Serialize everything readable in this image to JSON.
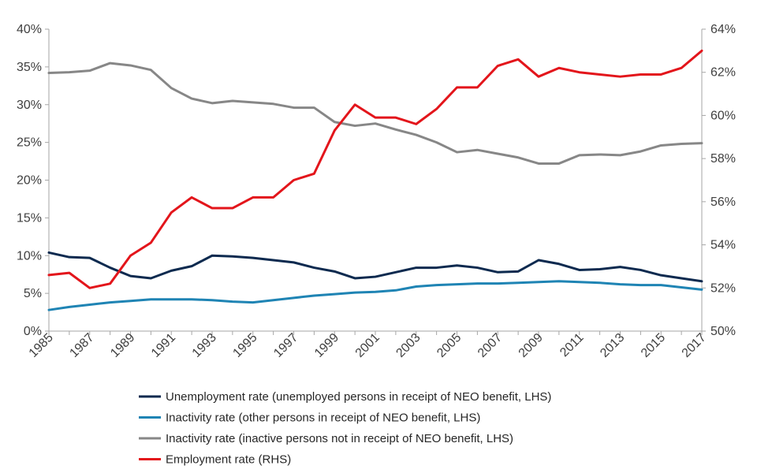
{
  "chart_data": {
    "type": "line",
    "x": [
      1985,
      1986,
      1987,
      1988,
      1989,
      1990,
      1991,
      1992,
      1993,
      1994,
      1995,
      1996,
      1997,
      1998,
      1999,
      2000,
      2001,
      2002,
      2003,
      2004,
      2005,
      2006,
      2007,
      2008,
      2009,
      2010,
      2011,
      2012,
      2013,
      2014,
      2015,
      2016,
      2017
    ],
    "x_tick_labels": [
      "1985",
      "1987",
      "1989",
      "1991",
      "1993",
      "1995",
      "1997",
      "1999",
      "2001",
      "2003",
      "2005",
      "2007",
      "2009",
      "2011",
      "2013",
      "2015",
      "2017"
    ],
    "y_left": {
      "ylim": [
        0,
        40
      ],
      "ticks": [
        0,
        5,
        10,
        15,
        20,
        25,
        30,
        35,
        40
      ],
      "tick_labels": [
        "0%",
        "5%",
        "10%",
        "15%",
        "20%",
        "25%",
        "30%",
        "35%",
        "40%"
      ]
    },
    "y_right": {
      "ylim": [
        50,
        64
      ],
      "ticks": [
        50,
        52,
        54,
        56,
        58,
        60,
        62,
        64
      ],
      "tick_labels": [
        "50%",
        "52%",
        "54%",
        "56%",
        "58%",
        "60%",
        "62%",
        "64%"
      ]
    },
    "grid": false,
    "legend_position": "bottom",
    "series": [
      {
        "name": "Unemployment rate (unemployed persons in receipt of NEO benefit, LHS)",
        "axis": "left",
        "color": "#0d2a4f",
        "values": [
          10.4,
          9.8,
          9.7,
          8.4,
          7.3,
          7.0,
          8.0,
          8.6,
          10.0,
          9.9,
          9.7,
          9.4,
          9.1,
          8.4,
          7.9,
          7.0,
          7.2,
          7.8,
          8.4,
          8.4,
          8.7,
          8.4,
          7.8,
          7.9,
          9.4,
          8.9,
          8.1,
          8.2,
          8.5,
          8.1,
          7.4,
          7.0,
          6.6
        ]
      },
      {
        "name": "Inactivity rate (other persons in receipt of NEO benefit, LHS)",
        "axis": "left",
        "color": "#1f84b4",
        "values": [
          2.8,
          3.2,
          3.5,
          3.8,
          4.0,
          4.2,
          4.2,
          4.2,
          4.1,
          3.9,
          3.8,
          4.1,
          4.4,
          4.7,
          4.9,
          5.1,
          5.2,
          5.4,
          5.9,
          6.1,
          6.2,
          6.3,
          6.3,
          6.4,
          6.5,
          6.6,
          6.5,
          6.4,
          6.2,
          6.1,
          6.1,
          5.8,
          5.5
        ]
      },
      {
        "name": "Inactivity rate (inactive persons not in receipt of NEO benefit, LHS)",
        "axis": "left",
        "color": "#878787",
        "values": [
          34.2,
          34.3,
          34.5,
          35.5,
          35.2,
          34.6,
          32.2,
          30.8,
          30.2,
          30.5,
          30.3,
          30.1,
          29.6,
          29.6,
          27.7,
          27.2,
          27.5,
          26.7,
          26.0,
          25.0,
          23.7,
          24.0,
          23.5,
          23.0,
          22.2,
          22.2,
          23.3,
          23.4,
          23.3,
          23.8,
          24.6,
          24.8,
          24.9
        ]
      },
      {
        "name": "Employment rate (RHS)",
        "axis": "right",
        "color": "#e3151b",
        "values": [
          52.6,
          52.7,
          52.0,
          52.2,
          53.5,
          54.1,
          55.5,
          56.2,
          55.7,
          55.7,
          56.2,
          56.2,
          57.0,
          57.3,
          59.3,
          60.5,
          59.9,
          59.9,
          59.6,
          60.3,
          61.3,
          61.3,
          62.3,
          62.6,
          61.8,
          62.2,
          62.0,
          61.9,
          61.8,
          61.9,
          61.9,
          62.2,
          63.0
        ]
      }
    ]
  }
}
